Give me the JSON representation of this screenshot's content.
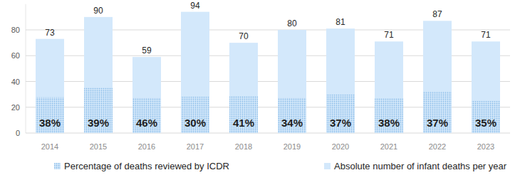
{
  "chart_data": {
    "type": "bar",
    "categories": [
      "2014",
      "2015",
      "2016",
      "2017",
      "2018",
      "2019",
      "2020",
      "2021",
      "2022",
      "2023"
    ],
    "series": [
      {
        "name": "Percentage of deaths reviewed by ICDR",
        "color": "#8fbfe9",
        "marker": "dotted",
        "values": [
          38,
          39,
          46,
          30,
          41,
          34,
          37,
          38,
          37,
          35
        ],
        "value_labels": [
          "38%",
          "39%",
          "46%",
          "30%",
          "41%",
          "34%",
          "37%",
          "38%",
          "37%",
          "35%"
        ],
        "data_labels": true
      },
      {
        "name": "Absolute number of infant deaths per year",
        "color": "#d3e8fb",
        "values": [
          73,
          90,
          59,
          94,
          70,
          80,
          81,
          71,
          87,
          71
        ],
        "data_labels": true
      }
    ],
    "ylim": [
      0,
      100
    ],
    "yticks": [
      0,
      20,
      40,
      60,
      80
    ],
    "grid": true,
    "legend": "bottom"
  }
}
